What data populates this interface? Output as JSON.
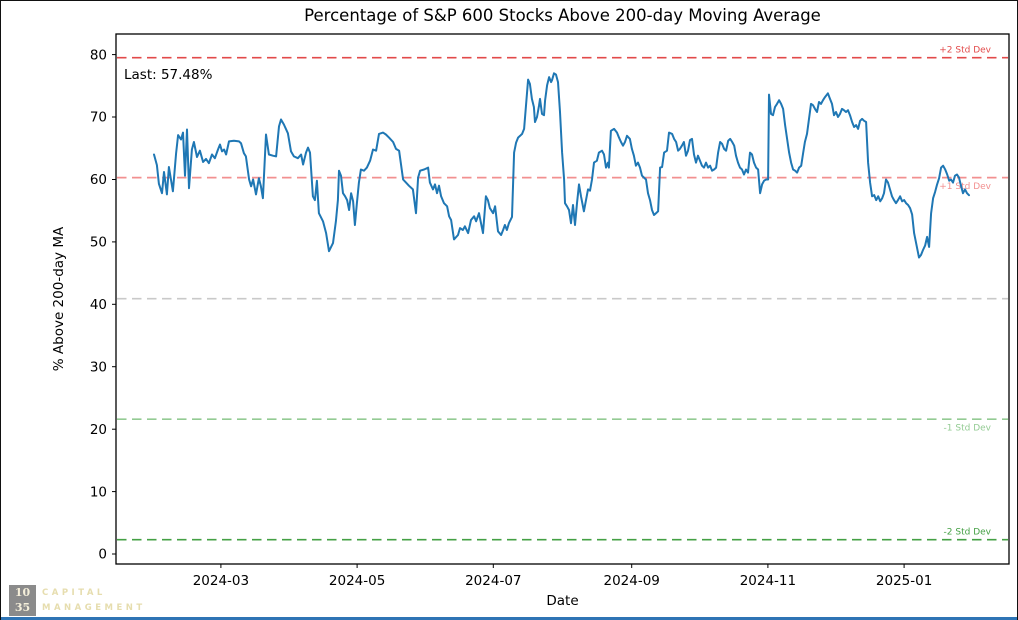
{
  "title": "Percentage of S&P 600 Stocks Above 200-day Moving Average",
  "annotation": {
    "last_label": "Last: 57.48%"
  },
  "logo": {
    "box_line1": "10",
    "box_line2": "35",
    "name_line1": "CAPITAL",
    "name_line2": "MANAGEMENT"
  },
  "colors": {
    "line": "#1f77b4",
    "plus2": "#e24a4a",
    "plus1": "#f29090",
    "mean": "#c9c9c9",
    "minus1": "#93cb93",
    "minus2": "#44a044",
    "footer_bar": "#2e74b5"
  },
  "chart_data": {
    "type": "line",
    "title": "Percentage of S&P 600 Stocks Above 200-day Moving Average",
    "xlabel": "Date",
    "ylabel": "% Above 200-day MA",
    "grid": false,
    "legend": "none",
    "last_value": 57.48,
    "x_epoch": "2024-01-31",
    "x_unit": "days_since_epoch",
    "xlim_days": [
      -17,
      383
    ],
    "ylim": [
      -1.6,
      83.3
    ],
    "y_ticks": [
      0,
      10,
      20,
      30,
      40,
      50,
      60,
      70,
      80
    ],
    "x_ticks": [
      {
        "label": "2024-03",
        "d": 30
      },
      {
        "label": "2024-05",
        "d": 91
      },
      {
        "label": "2024-07",
        "d": 152
      },
      {
        "label": "2024-09",
        "d": 214
      },
      {
        "label": "2024-11",
        "d": 275
      },
      {
        "label": "2025-01",
        "d": 336
      }
    ],
    "reference_lines": [
      {
        "label": "+2 Std Dev",
        "value": 79.5,
        "color": "#e24a4a",
        "label_side": "above"
      },
      {
        "label": "+1 Std Dev",
        "value": 60.3,
        "color": "#f29090",
        "label_side": "below"
      },
      {
        "label": "",
        "value": 40.9,
        "color": "#c9c9c9",
        "label_side": "none"
      },
      {
        "label": "-1 Std Dev",
        "value": 21.6,
        "color": "#93cb93",
        "label_side": "below"
      },
      {
        "label": "-2 Std Dev",
        "value": 2.3,
        "color": "#44a044",
        "label_side": "above"
      }
    ],
    "points": [
      [
        0,
        64.0
      ],
      [
        1.3,
        62.3
      ],
      [
        2.2,
        59.3
      ],
      [
        3.6,
        57.8
      ],
      [
        4.5,
        61.2
      ],
      [
        5.8,
        57.6
      ],
      [
        6.7,
        62.0
      ],
      [
        8.5,
        58.1
      ],
      [
        9.9,
        64.2
      ],
      [
        10.8,
        67.1
      ],
      [
        12.1,
        66.4
      ],
      [
        13.0,
        67.5
      ],
      [
        13.9,
        60.6
      ],
      [
        14.8,
        68.0
      ],
      [
        15.7,
        58.6
      ],
      [
        17.0,
        64.8
      ],
      [
        17.9,
        66.0
      ],
      [
        19.3,
        63.6
      ],
      [
        20.6,
        64.6
      ],
      [
        22.0,
        62.8
      ],
      [
        23.3,
        63.3
      ],
      [
        24.6,
        62.6
      ],
      [
        26.0,
        64.0
      ],
      [
        27.3,
        63.4
      ],
      [
        28.7,
        64.8
      ],
      [
        29.6,
        65.6
      ],
      [
        30.5,
        64.5
      ],
      [
        31.4,
        64.8
      ],
      [
        32.3,
        64.0
      ],
      [
        33.6,
        66.1
      ],
      [
        35.8,
        66.2
      ],
      [
        38.1,
        66.1
      ],
      [
        39.0,
        65.8
      ],
      [
        40.3,
        64.2
      ],
      [
        41.2,
        63.7
      ],
      [
        42.6,
        60.0
      ],
      [
        43.5,
        58.9
      ],
      [
        44.4,
        60.0
      ],
      [
        45.7,
        57.6
      ],
      [
        47.0,
        60.2
      ],
      [
        47.9,
        58.9
      ],
      [
        48.8,
        57.0
      ],
      [
        50.2,
        67.2
      ],
      [
        51.5,
        64.0
      ],
      [
        53.3,
        63.8
      ],
      [
        54.7,
        63.7
      ],
      [
        56.0,
        68.5
      ],
      [
        56.9,
        69.6
      ],
      [
        58.2,
        68.8
      ],
      [
        60.0,
        67.4
      ],
      [
        61.4,
        64.5
      ],
      [
        62.7,
        63.7
      ],
      [
        64.5,
        63.4
      ],
      [
        65.9,
        64.0
      ],
      [
        66.8,
        62.4
      ],
      [
        68.1,
        64.3
      ],
      [
        69.0,
        65.1
      ],
      [
        69.9,
        64.3
      ],
      [
        71.2,
        57.3
      ],
      [
        72.1,
        56.7
      ],
      [
        73.0,
        59.8
      ],
      [
        73.9,
        54.6
      ],
      [
        75.7,
        53.3
      ],
      [
        77.1,
        51.4
      ],
      [
        78.4,
        48.5
      ],
      [
        80.2,
        49.8
      ],
      [
        81.5,
        53.3
      ],
      [
        82.4,
        56.7
      ],
      [
        82.9,
        61.4
      ],
      [
        83.8,
        60.6
      ],
      [
        84.7,
        57.8
      ],
      [
        85.6,
        57.3
      ],
      [
        86.5,
        56.7
      ],
      [
        87.4,
        55.1
      ],
      [
        88.3,
        57.8
      ],
      [
        89.2,
        56.5
      ],
      [
        90.0,
        52.7
      ],
      [
        90.9,
        56.2
      ],
      [
        91.8,
        59.5
      ],
      [
        92.7,
        61.6
      ],
      [
        94.1,
        61.4
      ],
      [
        95.4,
        61.9
      ],
      [
        96.8,
        63.0
      ],
      [
        98.1,
        64.8
      ],
      [
        99.5,
        64.6
      ],
      [
        100.8,
        67.3
      ],
      [
        102.6,
        67.5
      ],
      [
        103.9,
        67.2
      ],
      [
        105.3,
        66.7
      ],
      [
        107.1,
        66.0
      ],
      [
        108.4,
        64.9
      ],
      [
        109.8,
        64.6
      ],
      [
        111.6,
        60.0
      ],
      [
        112.9,
        59.5
      ],
      [
        114.2,
        59.0
      ],
      [
        116.0,
        58.4
      ],
      [
        117.4,
        54.6
      ],
      [
        118.3,
        60.3
      ],
      [
        119.2,
        61.4
      ],
      [
        121.0,
        61.6
      ],
      [
        122.8,
        61.9
      ],
      [
        123.6,
        59.5
      ],
      [
        125.0,
        58.4
      ],
      [
        125.9,
        59.2
      ],
      [
        126.8,
        57.8
      ],
      [
        127.7,
        59.0
      ],
      [
        128.6,
        57.3
      ],
      [
        129.9,
        56.2
      ],
      [
        131.3,
        55.7
      ],
      [
        132.2,
        54.1
      ],
      [
        133.1,
        53.5
      ],
      [
        134.4,
        50.4
      ],
      [
        136.2,
        51.1
      ],
      [
        137.1,
        52.2
      ],
      [
        138.4,
        51.9
      ],
      [
        139.3,
        52.5
      ],
      [
        140.7,
        51.4
      ],
      [
        142.0,
        53.5
      ],
      [
        143.4,
        54.1
      ],
      [
        144.3,
        53.3
      ],
      [
        145.6,
        54.6
      ],
      [
        147.4,
        51.4
      ],
      [
        148.7,
        57.3
      ],
      [
        149.6,
        56.7
      ],
      [
        150.5,
        55.4
      ],
      [
        151.9,
        54.6
      ],
      [
        152.8,
        55.7
      ],
      [
        154.1,
        51.7
      ],
      [
        155.5,
        51.1
      ],
      [
        156.4,
        51.9
      ],
      [
        157.2,
        52.7
      ],
      [
        158.1,
        51.9
      ],
      [
        159.0,
        53.0
      ],
      [
        160.4,
        54.0
      ],
      [
        161.3,
        64.3
      ],
      [
        162.2,
        65.9
      ],
      [
        163.1,
        66.7
      ],
      [
        164.0,
        67.0
      ],
      [
        164.9,
        67.3
      ],
      [
        165.8,
        68.1
      ],
      [
        167.6,
        76.0
      ],
      [
        168.4,
        75.3
      ],
      [
        169.3,
        72.9
      ],
      [
        170.2,
        71.6
      ],
      [
        170.7,
        69.2
      ],
      [
        171.6,
        70.0
      ],
      [
        172.5,
        71.9
      ],
      [
        172.9,
        72.9
      ],
      [
        173.8,
        70.5
      ],
      [
        174.7,
        70.3
      ],
      [
        175.2,
        72.7
      ],
      [
        176.1,
        75.1
      ],
      [
        177.0,
        76.4
      ],
      [
        177.9,
        75.6
      ],
      [
        178.3,
        75.9
      ],
      [
        179.2,
        77.0
      ],
      [
        180.1,
        76.8
      ],
      [
        181.0,
        75.6
      ],
      [
        181.9,
        70.8
      ],
      [
        182.8,
        64.3
      ],
      [
        183.7,
        60.0
      ],
      [
        184.1,
        56.2
      ],
      [
        185.0,
        55.7
      ],
      [
        185.9,
        55.1
      ],
      [
        186.8,
        53.0
      ],
      [
        187.7,
        55.9
      ],
      [
        188.6,
        52.7
      ],
      [
        189.5,
        56.2
      ],
      [
        190.4,
        59.2
      ],
      [
        191.3,
        57.3
      ],
      [
        192.6,
        54.9
      ],
      [
        194.4,
        58.4
      ],
      [
        195.3,
        58.2
      ],
      [
        196.2,
        60.0
      ],
      [
        197.1,
        62.7
      ],
      [
        198.4,
        63.0
      ],
      [
        199.3,
        64.3
      ],
      [
        200.7,
        64.6
      ],
      [
        201.6,
        64.0
      ],
      [
        202.5,
        61.9
      ],
      [
        203.4,
        62.7
      ],
      [
        203.8,
        61.9
      ],
      [
        204.7,
        67.8
      ],
      [
        206.1,
        68.1
      ],
      [
        207.4,
        67.5
      ],
      [
        208.3,
        66.7
      ],
      [
        209.2,
        66.0
      ],
      [
        210.1,
        65.4
      ],
      [
        211.0,
        66.0
      ],
      [
        211.9,
        67.0
      ],
      [
        213.2,
        66.5
      ],
      [
        214.1,
        64.9
      ],
      [
        215.0,
        63.8
      ],
      [
        215.9,
        62.2
      ],
      [
        216.8,
        62.7
      ],
      [
        217.7,
        61.9
      ],
      [
        218.6,
        60.6
      ],
      [
        219.5,
        60.3
      ],
      [
        220.4,
        60.0
      ],
      [
        221.3,
        57.8
      ],
      [
        222.2,
        56.7
      ],
      [
        223.1,
        55.1
      ],
      [
        224.0,
        54.3
      ],
      [
        224.9,
        54.6
      ],
      [
        225.8,
        54.9
      ],
      [
        226.7,
        61.9
      ],
      [
        227.6,
        62.0
      ],
      [
        228.5,
        64.3
      ],
      [
        229.8,
        64.6
      ],
      [
        230.7,
        67.5
      ],
      [
        232.1,
        67.3
      ],
      [
        233.0,
        66.5
      ],
      [
        233.9,
        66.0
      ],
      [
        234.8,
        64.6
      ],
      [
        235.6,
        64.9
      ],
      [
        236.5,
        65.4
      ],
      [
        237.4,
        66.0
      ],
      [
        238.3,
        63.8
      ],
      [
        239.2,
        64.6
      ],
      [
        240.1,
        66.3
      ],
      [
        241.0,
        66.5
      ],
      [
        241.9,
        64.0
      ],
      [
        242.8,
        62.7
      ],
      [
        243.7,
        63.8
      ],
      [
        244.6,
        63.0
      ],
      [
        245.5,
        62.2
      ],
      [
        246.4,
        61.9
      ],
      [
        247.3,
        62.7
      ],
      [
        248.2,
        61.9
      ],
      [
        249.1,
        62.2
      ],
      [
        250.0,
        61.4
      ],
      [
        250.9,
        61.6
      ],
      [
        251.8,
        61.9
      ],
      [
        252.7,
        64.3
      ],
      [
        253.6,
        66.0
      ],
      [
        254.5,
        65.7
      ],
      [
        255.4,
        64.9
      ],
      [
        256.3,
        64.6
      ],
      [
        257.2,
        66.2
      ],
      [
        258.1,
        66.5
      ],
      [
        259.0,
        66.0
      ],
      [
        259.9,
        65.4
      ],
      [
        260.7,
        63.8
      ],
      [
        261.6,
        62.7
      ],
      [
        262.5,
        61.9
      ],
      [
        263.4,
        61.6
      ],
      [
        264.3,
        60.8
      ],
      [
        265.2,
        61.6
      ],
      [
        266.1,
        61.1
      ],
      [
        267.0,
        64.3
      ],
      [
        267.9,
        64.0
      ],
      [
        268.8,
        62.7
      ],
      [
        269.7,
        61.9
      ],
      [
        270.6,
        61.6
      ],
      [
        271.5,
        57.8
      ],
      [
        272.4,
        59.2
      ],
      [
        273.3,
        59.8
      ],
      [
        274.2,
        60.0
      ],
      [
        275.1,
        60.0
      ],
      [
        275.5,
        73.6
      ],
      [
        276.4,
        70.5
      ],
      [
        277.3,
        70.3
      ],
      [
        278.2,
        71.6
      ],
      [
        279.1,
        72.1
      ],
      [
        280.0,
        72.7
      ],
      [
        280.9,
        72.1
      ],
      [
        281.8,
        71.3
      ],
      [
        282.7,
        68.7
      ],
      [
        283.6,
        66.5
      ],
      [
        284.5,
        64.3
      ],
      [
        285.4,
        62.7
      ],
      [
        286.3,
        61.6
      ],
      [
        287.2,
        61.4
      ],
      [
        288.1,
        61.1
      ],
      [
        289.0,
        61.9
      ],
      [
        289.9,
        62.2
      ],
      [
        290.8,
        64.3
      ],
      [
        291.6,
        66.0
      ],
      [
        292.5,
        67.3
      ],
      [
        293.4,
        69.7
      ],
      [
        294.3,
        72.1
      ],
      [
        295.2,
        71.9
      ],
      [
        296.1,
        71.3
      ],
      [
        297.0,
        70.8
      ],
      [
        297.9,
        72.4
      ],
      [
        298.8,
        72.1
      ],
      [
        299.7,
        72.7
      ],
      [
        300.6,
        73.2
      ],
      [
        301.9,
        73.8
      ],
      [
        302.8,
        72.9
      ],
      [
        303.7,
        72.1
      ],
      [
        304.6,
        70.3
      ],
      [
        305.5,
        70.8
      ],
      [
        306.4,
        70.0
      ],
      [
        307.3,
        70.5
      ],
      [
        308.2,
        71.3
      ],
      [
        309.1,
        71.1
      ],
      [
        310.0,
        70.8
      ],
      [
        310.9,
        71.1
      ],
      [
        311.8,
        70.3
      ],
      [
        312.7,
        69.2
      ],
      [
        313.6,
        68.4
      ],
      [
        314.5,
        68.7
      ],
      [
        315.4,
        68.1
      ],
      [
        316.3,
        69.4
      ],
      [
        317.2,
        69.7
      ],
      [
        318.1,
        69.4
      ],
      [
        319.0,
        69.2
      ],
      [
        319.9,
        62.7
      ],
      [
        320.8,
        59.5
      ],
      [
        321.7,
        57.3
      ],
      [
        322.6,
        57.5
      ],
      [
        323.5,
        56.7
      ],
      [
        324.4,
        57.3
      ],
      [
        325.3,
        56.5
      ],
      [
        326.2,
        57.0
      ],
      [
        327.0,
        57.8
      ],
      [
        327.9,
        60.0
      ],
      [
        328.8,
        59.5
      ],
      [
        329.7,
        58.4
      ],
      [
        330.6,
        57.3
      ],
      [
        331.5,
        56.7
      ],
      [
        332.4,
        56.2
      ],
      [
        333.3,
        56.7
      ],
      [
        334.2,
        57.3
      ],
      [
        335.1,
        56.5
      ],
      [
        336.0,
        56.7
      ],
      [
        336.9,
        56.2
      ],
      [
        337.8,
        55.9
      ],
      [
        338.7,
        55.4
      ],
      [
        339.6,
        54.4
      ],
      [
        340.5,
        51.4
      ],
      [
        341.4,
        49.8
      ],
      [
        342.3,
        48.2
      ],
      [
        342.7,
        47.5
      ],
      [
        343.6,
        47.9
      ],
      [
        344.5,
        48.7
      ],
      [
        345.4,
        49.4
      ],
      [
        346.3,
        50.8
      ],
      [
        347.2,
        49.2
      ],
      [
        348.1,
        54.6
      ],
      [
        349.0,
        57.0
      ],
      [
        349.9,
        58.0
      ],
      [
        350.8,
        59.2
      ],
      [
        351.7,
        60.2
      ],
      [
        352.6,
        61.9
      ],
      [
        353.5,
        62.2
      ],
      [
        354.4,
        61.6
      ],
      [
        355.3,
        60.8
      ],
      [
        356.2,
        59.8
      ],
      [
        357.0,
        60.0
      ],
      [
        357.9,
        59.5
      ],
      [
        358.8,
        60.6
      ],
      [
        359.7,
        60.8
      ],
      [
        360.6,
        60.3
      ],
      [
        361.5,
        59.0
      ],
      [
        362.4,
        57.8
      ],
      [
        363.3,
        58.4
      ],
      [
        364.2,
        57.8
      ],
      [
        365.1,
        57.48
      ]
    ]
  }
}
